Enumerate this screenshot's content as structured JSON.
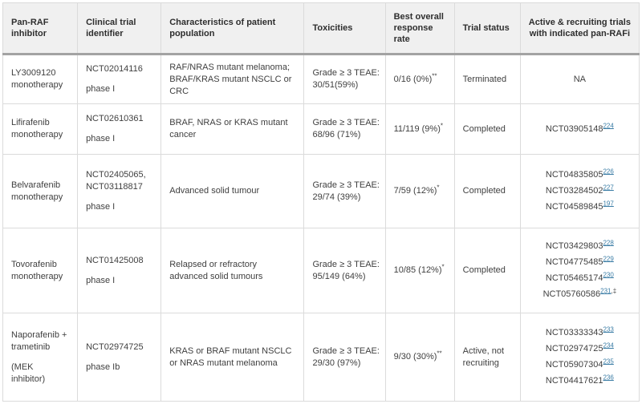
{
  "columns": [
    "Pan-RAF inhibitor",
    "Clinical trial identifier",
    "Characteristics of patient population",
    "Toxicities",
    "Best overall response rate",
    "Trial status",
    "Active & recruiting trials with indicated pan-RAFi"
  ],
  "rows": [
    {
      "inhibitor": [
        "LY3009120 monotherapy"
      ],
      "trial_identifier": [
        "NCT02014116",
        "phase I"
      ],
      "characteristics": "RAF/NRAS mutant melanoma; BRAF/KRAS mutant NSCLC or CRC",
      "toxicities": [
        "Grade ≥ 3 TEAE:",
        "30/51(59%)"
      ],
      "response_rate": "0/16 (0%)",
      "response_note": "**",
      "trial_status": "Terminated",
      "active_trials": [
        {
          "text": "NA",
          "ref": "",
          "suffix": ""
        }
      ]
    },
    {
      "inhibitor": [
        "Lifirafenib monotherapy"
      ],
      "trial_identifier": [
        "NCT02610361",
        "phase I"
      ],
      "characteristics": "BRAF, NRAS or KRAS mutant cancer",
      "toxicities": [
        "Grade ≥ 3 TEAE:",
        "68/96 (71%)"
      ],
      "response_rate": "11/119 (9%)",
      "response_note": "*",
      "trial_status": "Completed",
      "active_trials": [
        {
          "text": "NCT03905148",
          "ref": "224",
          "suffix": ""
        }
      ]
    },
    {
      "inhibitor": [
        "Belvarafenib monotherapy"
      ],
      "trial_identifier": [
        "NCT02405065, NCT03118817",
        "phase I"
      ],
      "characteristics": "Advanced solid tumour",
      "toxicities": [
        "Grade ≥ 3 TEAE:",
        "29/74 (39%)"
      ],
      "response_rate": "7/59 (12%)",
      "response_note": "*",
      "trial_status": "Completed",
      "active_trials": [
        {
          "text": "NCT04835805",
          "ref": "226",
          "suffix": ""
        },
        {
          "text": "NCT03284502",
          "ref": "227",
          "suffix": ""
        },
        {
          "text": "NCT04589845",
          "ref": "197",
          "suffix": ""
        }
      ]
    },
    {
      "inhibitor": [
        "Tovorafenib monotherapy"
      ],
      "trial_identifier": [
        "NCT01425008",
        "phase I"
      ],
      "characteristics": "Relapsed or refractory advanced solid tumours",
      "toxicities": [
        "Grade ≥ 3 TEAE:",
        "95/149 (64%)"
      ],
      "response_rate": "10/85 (12%)",
      "response_note": "*",
      "trial_status": "Completed",
      "active_trials": [
        {
          "text": "NCT03429803",
          "ref": "228",
          "suffix": ""
        },
        {
          "text": "NCT04775485",
          "ref": "229",
          "suffix": ""
        },
        {
          "text": "NCT05465174",
          "ref": "230",
          "suffix": ""
        },
        {
          "text": "NCT05760586",
          "ref": "231",
          "suffix": ",‡"
        }
      ]
    },
    {
      "inhibitor": [
        "Naporafenib + trametinib",
        "(MEK inhibitor)"
      ],
      "trial_identifier": [
        "NCT02974725",
        "phase Ib"
      ],
      "characteristics": "KRAS or BRAF mutant NSCLC or NRAS mutant melanoma",
      "toxicities": [
        "Grade ≥ 3 TEAE:",
        "29/30 (97%)"
      ],
      "response_rate": "9/30 (30%)",
      "response_note": "**",
      "trial_status": "Active, not recruiting",
      "active_trials": [
        {
          "text": "NCT03333343",
          "ref": "233",
          "suffix": ""
        },
        {
          "text": "NCT02974725",
          "ref": "234",
          "suffix": ""
        },
        {
          "text": "NCT05907304",
          "ref": "235",
          "suffix": ""
        },
        {
          "text": "NCT04417621",
          "ref": "236",
          "suffix": ""
        }
      ]
    }
  ],
  "colors": {
    "header_bg": "#f0f0f0",
    "cell_border": "#dbdbdb",
    "header_rule": "#a3a3a3",
    "link": "#3a7ca5",
    "text": "#3f3f3f"
  }
}
